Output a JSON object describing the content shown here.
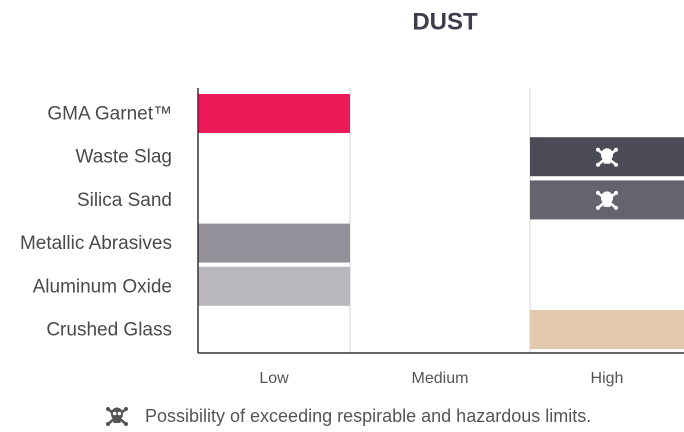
{
  "chart_data": {
    "type": "level",
    "title": "DUST",
    "categories": [
      "GMA Garnet™",
      "Waste Slag",
      "Silica Sand",
      "Metallic Abrasives",
      "Aluminum Oxide",
      "Crushed Glass"
    ],
    "levels": [
      "Low",
      "High",
      "High",
      "Low",
      "Low",
      "High"
    ],
    "colors": [
      "#ec1a58",
      "#4b4b58",
      "#64636e",
      "#94909a",
      "#bab7bd",
      "#e3c9ae"
    ],
    "hazard": [
      false,
      true,
      true,
      false,
      false,
      false
    ],
    "x_categories": [
      "Low",
      "Medium",
      "High"
    ],
    "note": "Possibility of exceeding respirable and hazardous limits."
  }
}
